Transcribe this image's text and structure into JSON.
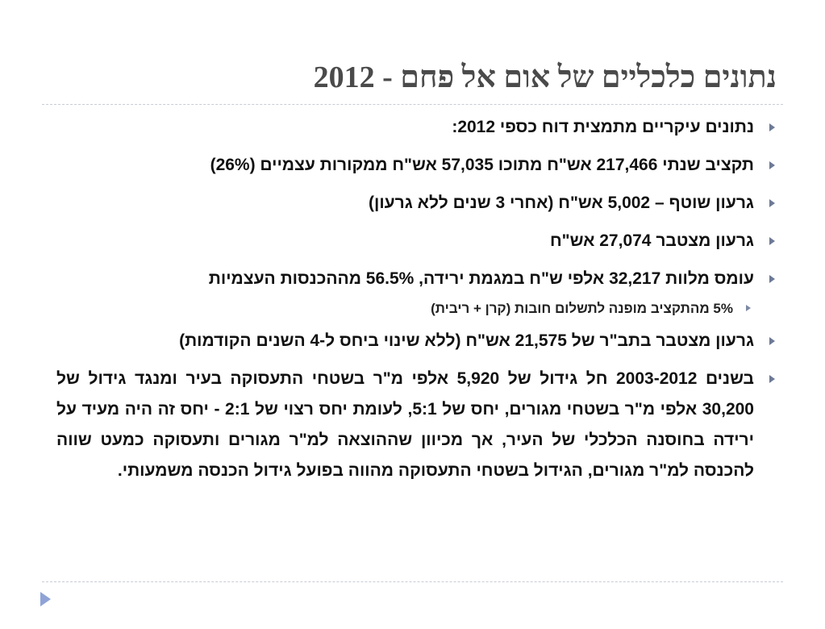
{
  "slide": {
    "title": "נתונים כלכליים של אום אל פחם - 2012",
    "bullets": [
      "נתונים עיקריים מתמצית דוח כספי 2012:",
      "תקציב שנתי 217,466 אש\"ח מתוכו 57,035 אש\"ח ממקורות עצמיים (26%)",
      "גרעון שוטף – 5,002 אש\"ח (אחרי 3 שנים ללא גרעון)",
      "גרעון מצטבר 27,074 אש\"ח",
      "עומס מלוות 32,217 אלפי ש\"ח במגמת ירידה, 56.5% מההכנסות העצמיות",
      "5% מהתקציב מופנה לתשלום חובות (קרן + ריבית)",
      "גרעון מצטבר בתב\"ר של  21,575 אש\"ח (ללא שינוי ביחס ל-4 השנים הקודמות)",
      "בשנים 2003-2012 חל גידול של 5,920 אלפי מ\"ר בשטחי התעסוקה בעיר ומנגד גידול של 30,200 אלפי מ\"ר בשטחי מגורים, יחס של 5:1, לעומת יחס רצוי של 2:1 - יחס זה היה מעיד על ירידה בחוסנה הכלכלי של העיר, אך מכיוון שההוצאה למ\"ר מגורים ותעסוקה כמעט שווה להכנסה למ\"ר מגורים, הגידול בשטחי התעסוקה מהווה בפועל גידול הכנסה משמעותי."
    ]
  },
  "colors": {
    "title": "#4a4a4a",
    "text": "#111111",
    "bullet_marker": "#6d7a96",
    "divider": "#c8ccd6",
    "nav_arrow": "#8fa3d6"
  },
  "icons": {
    "bullet_marker": "triangle-right-icon",
    "navigation": "next-slide-arrow-icon"
  }
}
